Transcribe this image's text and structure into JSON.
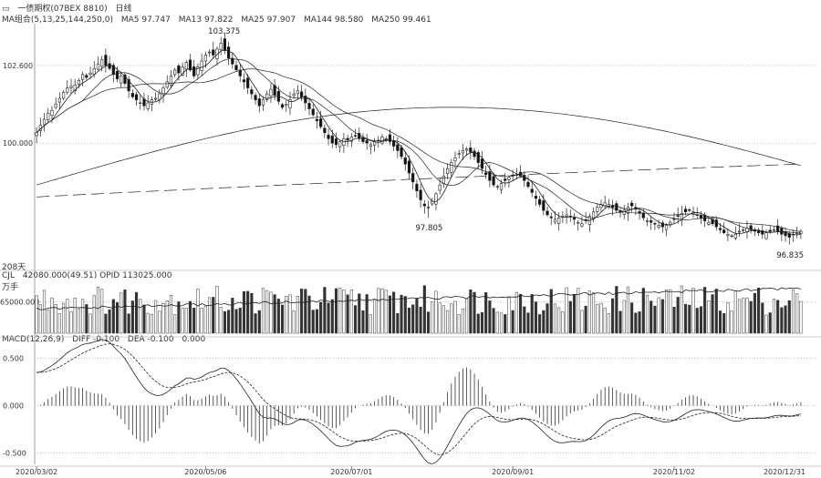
{
  "header": {
    "icon": "minus-icon",
    "title": "一债期权(07BEX 8810)",
    "period": "日线",
    "ma_label": "MA组合(5,13,25,144,250,0)",
    "ma5": "MA5 97.747",
    "ma13": "MA13 97.822",
    "ma25": "MA25 97.907",
    "ma144": "MA144 98.580",
    "ma250": "MA250 99.461"
  },
  "volume_header": {
    "label": "CJL",
    "values": "42080.000(49.51)  OPID 113025.000",
    "unit": "万手"
  },
  "macd_header": {
    "label": "MACD(12,26,9)",
    "dif": "DIFF -0.100",
    "dea": "DEA -0.100",
    "macd": "0.000"
  },
  "days_label": "208天",
  "chart_data": {
    "type": "candlestick",
    "price_axis": {
      "ticks": [
        "102.600",
        "100.000"
      ],
      "values": [
        102.6,
        100.0
      ],
      "ylim": [
        95.8,
        104.0
      ]
    },
    "volume_axis": {
      "ticks": [
        "65000.000"
      ],
      "values": [
        65000
      ],
      "ylim": [
        0,
        110000
      ]
    },
    "macd_axis": {
      "ticks": [
        "0.500",
        "0.000",
        "-0.500"
      ],
      "values": [
        0.5,
        0.0,
        -0.5
      ],
      "ylim": [
        -0.62,
        0.65
      ]
    },
    "x_ticks": [
      "2020/03/02",
      "2020/05/06",
      "2020/07/01",
      "2020/09/01",
      "2020/11/02",
      "2020/12/31"
    ],
    "annotations": [
      {
        "text": "103.375",
        "kind": "high"
      },
      {
        "text": "97.805",
        "kind": "low"
      },
      {
        "text": "96.835",
        "kind": "low"
      }
    ],
    "price_close": [
      100.35,
      100.6,
      100.8,
      101.0,
      101.1,
      101.3,
      101.5,
      101.7,
      101.85,
      101.9,
      101.95,
      102.1,
      102.3,
      102.2,
      102.35,
      102.5,
      102.65,
      102.8,
      102.6,
      102.5,
      102.3,
      102.15,
      102.25,
      102.0,
      101.75,
      101.55,
      101.45,
      101.35,
      101.25,
      101.35,
      101.45,
      101.5,
      101.65,
      101.85,
      102.05,
      102.25,
      102.45,
      102.35,
      102.55,
      102.7,
      102.45,
      102.25,
      102.55,
      102.75,
      102.95,
      103.05,
      102.95,
      103.15,
      103.35,
      103.1,
      102.85,
      102.65,
      102.45,
      102.25,
      102.05,
      101.85,
      101.65,
      101.45,
      101.25,
      101.45,
      101.65,
      101.8,
      101.6,
      101.4,
      101.2,
      101.3,
      101.45,
      101.65,
      101.75,
      101.55,
      101.35,
      101.15,
      100.95,
      100.75,
      100.55,
      100.35,
      100.15,
      100.0,
      99.95,
      100.05,
      100.15,
      100.1,
      100.2,
      100.25,
      100.15,
      100.05,
      100.0,
      99.95,
      100.05,
      100.1,
      100.2,
      100.15,
      100.05,
      99.9,
      99.75,
      99.55,
      99.3,
      99.0,
      98.7,
      98.4,
      98.1,
      97.9,
      97.85,
      98.05,
      98.3,
      98.6,
      98.9,
      99.15,
      99.35,
      99.5,
      99.65,
      99.75,
      99.8,
      99.7,
      99.55,
      99.35,
      99.15,
      98.95,
      98.75,
      98.6,
      98.55,
      98.65,
      98.75,
      98.85,
      98.9,
      98.95,
      98.9,
      98.75,
      98.55,
      98.35,
      98.15,
      97.95,
      97.75,
      97.6,
      97.5,
      97.45,
      97.5,
      97.55,
      97.6,
      97.55,
      97.45,
      97.35,
      97.3,
      97.4,
      97.55,
      97.7,
      97.85,
      97.95,
      98.0,
      97.95,
      97.85,
      97.75,
      97.7,
      97.75,
      97.85,
      97.9,
      97.8,
      97.65,
      97.5,
      97.4,
      97.35,
      97.3,
      97.25,
      97.2,
      97.25,
      97.35,
      97.45,
      97.55,
      97.65,
      97.7,
      97.75,
      97.7,
      97.6,
      97.5,
      97.4,
      97.35,
      97.3,
      97.2,
      97.1,
      97.0,
      96.95,
      96.9,
      96.95,
      97.05,
      97.1,
      97.15,
      97.1,
      97.05,
      97.0,
      96.95,
      97.0,
      97.05,
      97.1,
      97.05,
      96.95,
      96.9,
      96.85,
      96.95,
      97.0,
      97.05
    ],
    "series": [
      {
        "name": "MA5"
      },
      {
        "name": "MA13"
      },
      {
        "name": "MA25"
      },
      {
        "name": "MA144"
      },
      {
        "name": "MA250"
      }
    ],
    "colors": {
      "up": "#444444",
      "down": "#111111",
      "line": "#222222",
      "grid": "#9a9a9a"
    }
  }
}
